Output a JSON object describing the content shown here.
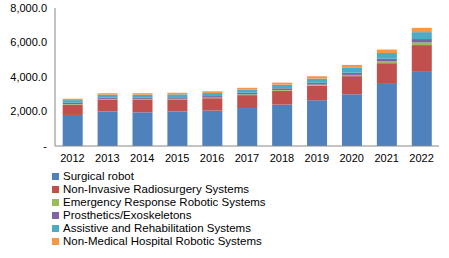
{
  "chart_data": {
    "type": "bar",
    "stacked": true,
    "grid": false,
    "legend": "bottom",
    "categories": [
      "2012",
      "2013",
      "2014",
      "2015",
      "2016",
      "2017",
      "2018",
      "2019",
      "2020",
      "2021",
      "2022"
    ],
    "ylim": [
      0,
      8000
    ],
    "yticks": [
      {
        "value": 0,
        "label": "-"
      },
      {
        "value": 2000,
        "label": "2,000.0"
      },
      {
        "value": 4000,
        "label": "4,000.0"
      },
      {
        "value": 6000,
        "label": "6,000.0"
      },
      {
        "value": 8000,
        "label": "8,000.0"
      }
    ],
    "series": [
      {
        "name": "Surgical robot",
        "color": "#4F81BD",
        "values": [
          1800,
          2000,
          1950,
          2000,
          2050,
          2200,
          2400,
          2650,
          3000,
          3600,
          4300
        ]
      },
      {
        "name": "Non-Invasive Radiosurgery Systems",
        "color": "#C0504D",
        "values": [
          600,
          700,
          750,
          700,
          720,
          750,
          800,
          850,
          1050,
          1200,
          1550
        ]
      },
      {
        "name": "Emergency Response Robotic Systems",
        "color": "#9BBB59",
        "values": [
          30,
          30,
          30,
          35,
          35,
          40,
          45,
          55,
          70,
          100,
          150
        ]
      },
      {
        "name": "Prosthetics/Exoskeletons",
        "color": "#8064A2",
        "values": [
          80,
          85,
          85,
          90,
          90,
          95,
          100,
          110,
          130,
          160,
          200
        ]
      },
      {
        "name": "Assistive and Rehabilitation Systems",
        "color": "#4BACC6",
        "values": [
          150,
          160,
          160,
          170,
          180,
          190,
          210,
          240,
          280,
          330,
          400
        ]
      },
      {
        "name": "Non-Medical Hospital Robotic Systems",
        "color": "#F79646",
        "values": [
          80,
          85,
          85,
          90,
          95,
          100,
          120,
          140,
          170,
          200,
          250
        ]
      }
    ]
  }
}
